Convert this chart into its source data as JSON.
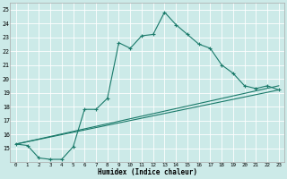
{
  "xlabel": "Humidex (Indice chaleur)",
  "bg_color": "#cceae8",
  "grid_color": "#ffffff",
  "line_color": "#1a7a6a",
  "xlim": [
    -0.5,
    23.5
  ],
  "ylim": [
    14,
    25.5
  ],
  "xticks": [
    0,
    1,
    2,
    3,
    4,
    5,
    6,
    7,
    8,
    9,
    10,
    11,
    12,
    13,
    14,
    15,
    16,
    17,
    18,
    19,
    20,
    21,
    22,
    23
  ],
  "yticks": [
    15,
    16,
    17,
    18,
    19,
    20,
    21,
    22,
    23,
    24,
    25
  ],
  "series1_x": [
    0,
    1,
    2,
    3,
    4,
    5,
    6,
    7,
    8,
    9,
    10,
    11,
    12,
    13,
    14,
    15,
    16,
    17,
    18,
    19,
    20,
    21,
    22,
    23
  ],
  "series1_y": [
    15.3,
    15.2,
    14.3,
    14.2,
    14.2,
    15.1,
    17.8,
    17.8,
    18.6,
    22.6,
    22.2,
    23.1,
    23.2,
    24.8,
    23.9,
    23.2,
    22.5,
    22.2,
    21.0,
    20.4,
    19.5,
    19.3,
    19.5,
    19.2
  ],
  "series2_x": [
    0,
    23
  ],
  "series2_y": [
    15.3,
    19.2
  ],
  "series3_x": [
    0,
    23
  ],
  "series3_y": [
    15.3,
    19.5
  ]
}
